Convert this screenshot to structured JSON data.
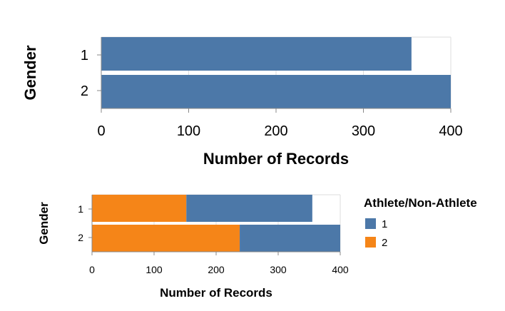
{
  "chart_data": [
    {
      "type": "bar",
      "orientation": "horizontal",
      "categories": [
        "1",
        "2"
      ],
      "series": [
        {
          "values": [
            355,
            400
          ]
        }
      ],
      "xlabel": "Number of Records",
      "ylabel": "Gender",
      "xlim": [
        0,
        400
      ],
      "xticks": [
        "0",
        "100",
        "200",
        "300",
        "400"
      ],
      "grid": true,
      "colors": [
        "#4c78a8"
      ]
    },
    {
      "type": "bar",
      "orientation": "horizontal",
      "stacked": true,
      "categories": [
        "1",
        "2"
      ],
      "series": [
        {
          "name": "2",
          "values": [
            152,
            238
          ]
        },
        {
          "name": "1",
          "values": [
            203,
            162
          ]
        }
      ],
      "xlabel": "Number of Records",
      "ylabel": "Gender",
      "xlim": [
        0,
        400
      ],
      "xticks": [
        "0",
        "100",
        "200",
        "300",
        "400"
      ],
      "grid": true,
      "legend": {
        "title": "Athlete/Non-Athlete",
        "placement": "right",
        "items": [
          {
            "label": "1",
            "color": "#4c78a8"
          },
          {
            "label": "2",
            "color": "#f58518"
          }
        ]
      },
      "colors": [
        "#f58518",
        "#4c78a8"
      ]
    }
  ]
}
